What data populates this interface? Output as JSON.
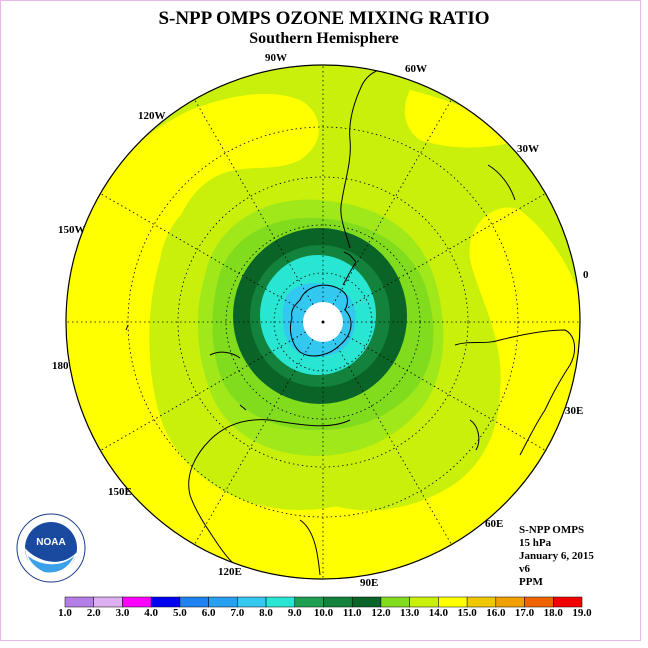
{
  "title": "S-NPP OMPS OZONE MIXING RATIO",
  "subtitle": "Southern Hemisphere",
  "longitude_labels": [
    "90W",
    "60W",
    "30W",
    "0",
    "30E",
    "60E",
    "90E",
    "120E",
    "150E",
    "180",
    "150W",
    "120W"
  ],
  "info": {
    "instrument": "S-NPP OMPS",
    "level": "15 hPa",
    "date": "January 6, 2015",
    "version": "v6",
    "units": "PPM"
  },
  "logo_text": "NOAA",
  "colorbar": {
    "labels": [
      "1.0",
      "2.0",
      "3.0",
      "4.0",
      "5.0",
      "6.0",
      "7.0",
      "8.0",
      "9.0",
      "10.0",
      "11.0",
      "12.0",
      "13.0",
      "14.0",
      "15.0",
      "16.0",
      "17.0",
      "18.0",
      "19.0"
    ],
    "colors": [
      "#b57ee6",
      "#dcb0f0",
      "#ff00ff",
      "#0000f0",
      "#1e82f0",
      "#28a0f0",
      "#32c8f0",
      "#28e6d2",
      "#1ea050",
      "#12823c",
      "#0a6428",
      "#82dc1e",
      "#c8f00a",
      "#ffff00",
      "#f0c800",
      "#f0a000",
      "#f06400",
      "#f00000",
      "#8c5032"
    ]
  },
  "map_colors": {
    "c13": "#c8f00a",
    "c14": "#ffff00",
    "c12": "#a0e81a",
    "c11": "#82dc1e",
    "c10": "#0a6428",
    "c9": "#12823c",
    "c8": "#28e6d2",
    "c7": "#32c8f0",
    "pole": "#ffffff"
  }
}
